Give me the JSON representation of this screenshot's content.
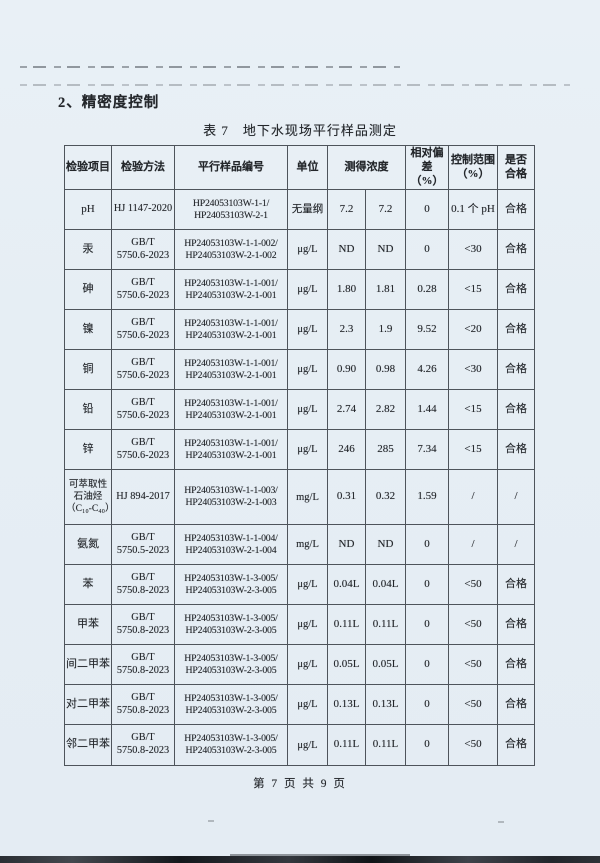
{
  "page": {
    "heading": "2、精密度控制",
    "table_title": "表 7　地下水现场平行样品测定",
    "footer": "第 7 页 共 9 页"
  },
  "table": {
    "headers": [
      "检验项目",
      "检验方法",
      "平行样品编号",
      "单位",
      "测得浓度",
      "相对偏差\n（%）",
      "控制范围\n（%）",
      "是否\n合格"
    ],
    "rows": [
      {
        "item": "pH",
        "method": "HJ 1147-2020",
        "sample_ids": "HP24053103W-1-1/\nHP24053103W-2-1",
        "unit": "无量纲",
        "value1": "7.2",
        "value2": "7.2",
        "deviation": "0",
        "control_range": "0.1 个 pH",
        "qualified": "合格"
      },
      {
        "item": "汞",
        "method": "GB/T\n5750.6-2023",
        "sample_ids": "HP24053103W-1-1-002/\nHP24053103W-2-1-002",
        "unit": "μg/L",
        "value1": "ND",
        "value2": "ND",
        "deviation": "0",
        "control_range": "<30",
        "qualified": "合格"
      },
      {
        "item": "砷",
        "method": "GB/T\n5750.6-2023",
        "sample_ids": "HP24053103W-1-1-001/\nHP24053103W-2-1-001",
        "unit": "μg/L",
        "value1": "1.80",
        "value2": "1.81",
        "deviation": "0.28",
        "control_range": "<15",
        "qualified": "合格"
      },
      {
        "item": "镍",
        "method": "GB/T\n5750.6-2023",
        "sample_ids": "HP24053103W-1-1-001/\nHP24053103W-2-1-001",
        "unit": "μg/L",
        "value1": "2.3",
        "value2": "1.9",
        "deviation": "9.52",
        "control_range": "<20",
        "qualified": "合格"
      },
      {
        "item": "铜",
        "method": "GB/T\n5750.6-2023",
        "sample_ids": "HP24053103W-1-1-001/\nHP24053103W-2-1-001",
        "unit": "μg/L",
        "value1": "0.90",
        "value2": "0.98",
        "deviation": "4.26",
        "control_range": "<30",
        "qualified": "合格"
      },
      {
        "item": "铅",
        "method": "GB/T\n5750.6-2023",
        "sample_ids": "HP24053103W-1-1-001/\nHP24053103W-2-1-001",
        "unit": "μg/L",
        "value1": "2.74",
        "value2": "2.82",
        "deviation": "1.44",
        "control_range": "<15",
        "qualified": "合格"
      },
      {
        "item": "锌",
        "method": "GB/T\n5750.6-2023",
        "sample_ids": "HP24053103W-1-1-001/\nHP24053103W-2-1-001",
        "unit": "μg/L",
        "value1": "246",
        "value2": "285",
        "deviation": "7.34",
        "control_range": "<15",
        "qualified": "合格"
      },
      {
        "item": "可萃取性\n石油烃\n（C₁₀-C₄₀）",
        "method": "HJ 894-2017",
        "sample_ids": "HP24053103W-1-1-003/\nHP24053103W-2-1-003",
        "unit": "mg/L",
        "value1": "0.31",
        "value2": "0.32",
        "deviation": "1.59",
        "control_range": "/",
        "qualified": "/"
      },
      {
        "item": "氨氮",
        "method": "GB/T\n5750.5-2023",
        "sample_ids": "HP24053103W-1-1-004/\nHP24053103W-2-1-004",
        "unit": "mg/L",
        "value1": "ND",
        "value2": "ND",
        "deviation": "0",
        "control_range": "/",
        "qualified": "/"
      },
      {
        "item": "苯",
        "method": "GB/T\n5750.8-2023",
        "sample_ids": "HP24053103W-1-3-005/\nHP24053103W-2-3-005",
        "unit": "μg/L",
        "value1": "0.04L",
        "value2": "0.04L",
        "deviation": "0",
        "control_range": "<50",
        "qualified": "合格"
      },
      {
        "item": "甲苯",
        "method": "GB/T\n5750.8-2023",
        "sample_ids": "HP24053103W-1-3-005/\nHP24053103W-2-3-005",
        "unit": "μg/L",
        "value1": "0.11L",
        "value2": "0.11L",
        "deviation": "0",
        "control_range": "<50",
        "qualified": "合格"
      },
      {
        "item": "间二甲苯",
        "method": "GB/T\n5750.8-2023",
        "sample_ids": "HP24053103W-1-3-005/\nHP24053103W-2-3-005",
        "unit": "μg/L",
        "value1": "0.05L",
        "value2": "0.05L",
        "deviation": "0",
        "control_range": "<50",
        "qualified": "合格"
      },
      {
        "item": "对二甲苯",
        "method": "GB/T\n5750.8-2023",
        "sample_ids": "HP24053103W-1-3-005/\nHP24053103W-2-3-005",
        "unit": "μg/L",
        "value1": "0.13L",
        "value2": "0.13L",
        "deviation": "0",
        "control_range": "<50",
        "qualified": "合格"
      },
      {
        "item": "邻二甲苯",
        "method": "GB/T\n5750.8-2023",
        "sample_ids": "HP24053103W-1-3-005/\nHP24053103W-2-3-005",
        "unit": "μg/L",
        "value1": "0.11L",
        "value2": "0.11L",
        "deviation": "0",
        "control_range": "<50",
        "qualified": "合格"
      }
    ]
  }
}
